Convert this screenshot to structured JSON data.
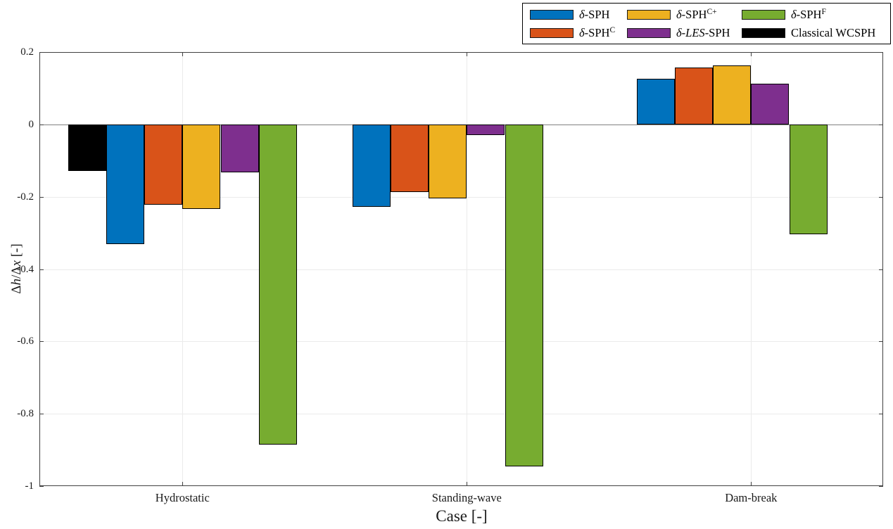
{
  "figure": {
    "background": "#FFFFFF"
  },
  "chart_data": {
    "type": "bar",
    "title": "",
    "xlabel": "Case [-]",
    "ylabel": "Δh/Δx [-]",
    "ylabel_segments": [
      {
        "t": "Δ"
      },
      {
        "t": "h",
        "i": true
      },
      {
        "t": "/Δ"
      },
      {
        "t": "x",
        "i": true
      },
      {
        "t": " [-]"
      }
    ],
    "ylim": [
      -1,
      0.2
    ],
    "yticks": [
      0.2,
      0,
      -0.2,
      -0.4,
      -0.6,
      -0.8,
      -1
    ],
    "ytick_labels": [
      "0.2",
      "0",
      "-0.2",
      "-0.4",
      "-0.6",
      "-0.8",
      "-1"
    ],
    "grid": true,
    "legend_position": "top-right-outside",
    "legend_columns": 3,
    "categories": [
      "Hydrostatic",
      "Standing-wave",
      "Dam-break"
    ],
    "series": [
      {
        "name": "δ-SPH",
        "label_segments": [
          {
            "t": "δ",
            "i": true
          },
          {
            "t": "-SPH"
          }
        ],
        "color": "#0072BD",
        "values": [
          -0.33,
          -0.228,
          0.126
        ]
      },
      {
        "name": "δ-SPH^C",
        "label_segments": [
          {
            "t": "δ",
            "i": true
          },
          {
            "t": "-SPH"
          },
          {
            "t": "C",
            "sup": true
          }
        ],
        "color": "#D95319",
        "values": [
          -0.222,
          -0.187,
          0.158
        ]
      },
      {
        "name": "δ-SPH^C+",
        "label_segments": [
          {
            "t": "δ",
            "i": true
          },
          {
            "t": "-SPH"
          },
          {
            "t": "C+",
            "sup": true
          }
        ],
        "color": "#EDB120",
        "values": [
          -0.233,
          -0.205,
          0.163
        ]
      },
      {
        "name": "δ-LES-SPH",
        "label_segments": [
          {
            "t": "δ",
            "i": true
          },
          {
            "t": "-"
          },
          {
            "t": "LES",
            "i": true
          },
          {
            "t": "-SPH"
          }
        ],
        "color": "#7E2F8E",
        "values": [
          -0.132,
          -0.029,
          0.113
        ]
      },
      {
        "name": "δ-SPH^F",
        "label_segments": [
          {
            "t": "δ",
            "i": true
          },
          {
            "t": "-SPH"
          },
          {
            "t": "F",
            "sup": true
          }
        ],
        "color": "#77AC30",
        "values": [
          -0.885,
          -0.946,
          -0.303
        ]
      },
      {
        "name": "Classical WCSPH",
        "label_segments": [
          {
            "t": "Classical WCSPH"
          }
        ],
        "color": "#000000",
        "values": [
          -0.128,
          null,
          null
        ]
      }
    ],
    "slot_map": [
      [
        1,
        2,
        3,
        4,
        5,
        0
      ],
      [
        0,
        1,
        2,
        3,
        4,
        null
      ],
      [
        0,
        1,
        2,
        3,
        4,
        null
      ]
    ],
    "bar_edge_color": "#000000",
    "baseline_color": "#808080",
    "grid_color": "#EBEBEB",
    "axis_color": "#404040",
    "text_color": "#1A1A1A"
  }
}
